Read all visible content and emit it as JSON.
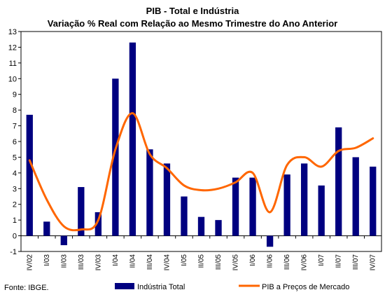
{
  "chart_data": {
    "type": "bar",
    "title": "PIB - Total e Indústria",
    "subtitle": "Variação % Real com Relação ao Mesmo Trimestre do Ano Anterior",
    "categories": [
      "IV/02",
      "I/03",
      "II/03",
      "III/03",
      "IV/03",
      "I/04",
      "II/04",
      "III/04",
      "IV/04",
      "I/05",
      "II/05",
      "III/05",
      "IV/05",
      "I/06",
      "II/06",
      "III/06",
      "IV/06",
      "I/07",
      "II/07",
      "III/07",
      "IV/07"
    ],
    "series": [
      {
        "name": "Indústria Total",
        "type": "bar",
        "color": "#000080",
        "values": [
          7.7,
          0.9,
          -0.6,
          3.1,
          1.5,
          10.0,
          12.3,
          5.5,
          4.6,
          2.5,
          1.2,
          1.0,
          3.7,
          3.7,
          -0.7,
          3.9,
          4.6,
          3.2,
          6.9,
          5.0,
          4.4
        ]
      },
      {
        "name": "PIB a Preços de Mercado",
        "type": "line",
        "color": "#ff6600",
        "values": [
          4.8,
          2.3,
          0.6,
          0.4,
          1.0,
          5.5,
          7.8,
          5.2,
          4.3,
          3.2,
          2.9,
          3.0,
          3.4,
          4.0,
          1.5,
          4.5,
          5.0,
          4.4,
          5.4,
          5.6,
          6.2
        ]
      }
    ],
    "ylim": [
      -1,
      13
    ],
    "yticks": [
      -1,
      0,
      1,
      2,
      3,
      4,
      5,
      6,
      7,
      8,
      9,
      10,
      11,
      12,
      13
    ],
    "grid": false,
    "legend": "bottom",
    "source": "Fonte: IBGE."
  }
}
